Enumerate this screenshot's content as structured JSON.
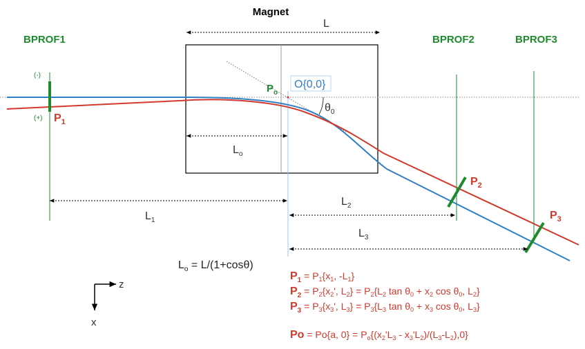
{
  "magnet_title": "Magnet",
  "length_labels": {
    "L": "L",
    "Lo_main": "L",
    "Lo_sub": "o",
    "L1_main": "L",
    "L1_sub": "1",
    "L2_main": "L",
    "L2_sub": "2",
    "L3_main": "L",
    "L3_sub": "3"
  },
  "profilers": [
    {
      "name": "BPROF1"
    },
    {
      "name": "BPROF2"
    },
    {
      "name": "BPROF3"
    }
  ],
  "sign_labels": {
    "minus": "(-)",
    "plus": "(+)"
  },
  "points": {
    "P1": {
      "main": "P",
      "sub": "1"
    },
    "P2": {
      "main": "P",
      "sub": "2"
    },
    "P3": {
      "main": "P",
      "sub": "3"
    },
    "Po": {
      "main": "P",
      "sub": "o"
    }
  },
  "origin_label": "O{0,0}",
  "angle_label": {
    "main": "θ",
    "sub": "0"
  },
  "lo_formula": {
    "lhs_main": "L",
    "lhs_sub": "o",
    "rhs": " = L/(1+cosθ)"
  },
  "axes": {
    "z": "z",
    "x": "x"
  },
  "equations": {
    "p1": {
      "head_main": "P",
      "head_sub": "1",
      "p1": " = P",
      "s1": "1",
      "p2": "{x",
      "s2": "1",
      "p3": ", -L",
      "s3": "1",
      "p4": "}"
    },
    "p2": {
      "head_main": "P",
      "head_sub": "2",
      "p1": " = P",
      "s1": "2",
      "p2": "{x",
      "s2": "2",
      "p3": "', L",
      "s3": "2",
      "p4": "} = P",
      "s4": "2",
      "p5": "{L",
      "s5": "2",
      "p6": " tan θ",
      "s6": "0",
      "p7": " + x",
      "s7": "2",
      "p8": " cos θ",
      "s8": "0",
      "p9": ", L",
      "s9": "2",
      "p10": "}"
    },
    "p3": {
      "head_main": "P",
      "head_sub": "3",
      "p1": " = P",
      "s1": "3",
      "p2": "{x",
      "s2": "3",
      "p3": "', L",
      "s3": "3",
      "p4": "} = P",
      "s4": "3",
      "p5": "{L",
      "s5": "3",
      "p6": " tan θ",
      "s6": "0",
      "p7": " + x",
      "s7": "3",
      "p8": " cos θ",
      "s8": "0",
      "p9": ", L",
      "s9": "3",
      "p10": "}"
    },
    "po": {
      "head": "Po",
      "p1": " = Po{a, 0} = P",
      "s1": "o",
      "p2": "{(x",
      "s2": "2",
      "p3": "'L",
      "s3": "3",
      "p4": " - x",
      "s4": "3",
      "p5": "'L",
      "s5": "2",
      "p6": ")/(L",
      "s6": "3",
      "p7": "-L",
      "s7": "2",
      "p8": "),0}"
    }
  },
  "colors": {
    "green": "#1e8a2e",
    "red": "#d0392b",
    "blue": "#2f7fc4",
    "gray": "#555555"
  }
}
